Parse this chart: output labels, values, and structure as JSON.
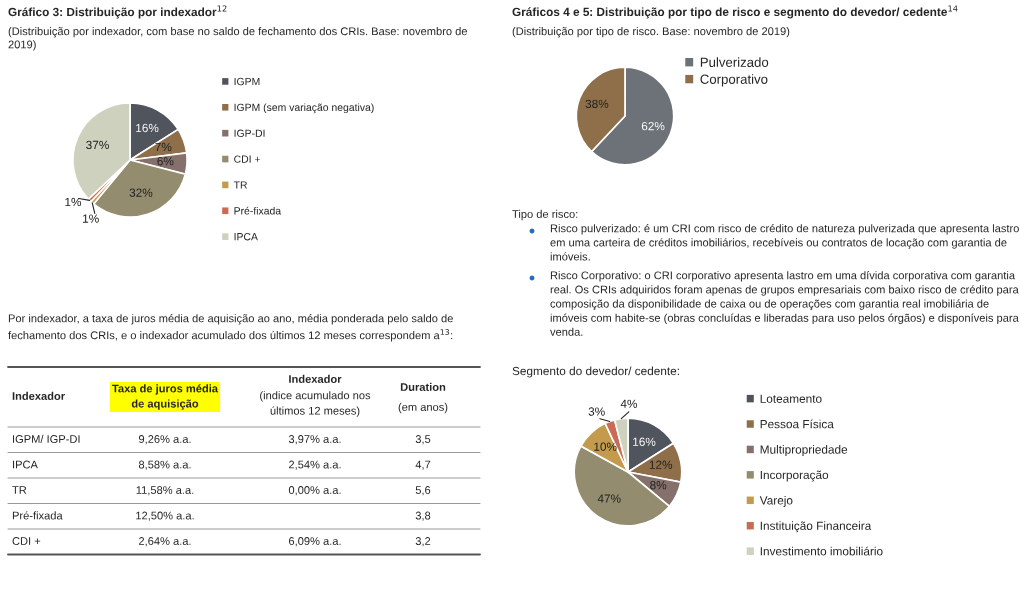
{
  "chart_data": [
    {
      "type": "pie",
      "title": "Gráfico 3: Distribuição por indexador$^{12}$",
      "subtitle": "(Distribuição por indexador, com base no saldo de fechamento dos CRIs. Base: novembro de\n2019)",
      "categories": [
        "IGPM",
        "IGPM (sem variação negativa)",
        "IGP-DI",
        "CDI +",
        "TR",
        "Pré-fixada",
        "IPCA"
      ],
      "values": [
        16,
        7,
        6,
        32,
        1,
        1,
        37
      ],
      "value_labels": [
        "16%",
        "7%",
        "6%",
        "32%",
        "1%",
        "1%",
        "37%"
      ],
      "colors": [
        "#50545c",
        "#8f6f4a",
        "#86706c",
        "#948c6e",
        "#c49a4c",
        "#c96b55",
        "#cdd1bd"
      ],
      "legend": "right"
    },
    {
      "type": "other",
      "annotations": [
        "Por indexador, a taxa de juros média de aquisição ao ano, média ponderada pelo saldo de\nfechamento dos CRIs, e o indexador acumulado dos últimos 12 meses correspondem a$^{13}$:",
        "Indexador",
        "Taxa de juros média\nde aquisição",
        "Indexador",
        "(indice acumulado nos\núltimos 12 meses)",
        "Duration",
        "(em anos)",
        "IGPM/ IGP-DI",
        "9,26% a.a.",
        "3,97% a.a.",
        "3,5",
        "IPCA",
        "8,58% a.a.",
        "2,54% a.a.",
        "4,7",
        "TR",
        "11,58% a.a.",
        "0,00% a.a.",
        "5,6",
        "Pré-fixada",
        "12,50% a.a.",
        null,
        "3,8",
        "CDI +",
        "2,64% a.a.",
        "6,09% a.a.",
        "3,2"
      ]
    },
    {
      "type": "pie",
      "title": "Gráficos 4 e 5: Distribuição por tipo de risco e segmento do devedor/ cedente$^{14}$",
      "subtitle": "(Distribuição por tipo de risco. Base: novembro de 2019)",
      "categories": [
        "Pulverizado",
        "Corporativo"
      ],
      "values": [
        62,
        38
      ],
      "value_labels": [
        "62%",
        "38%"
      ],
      "colors": [
        "#6d7278",
        "#8f6f4a"
      ],
      "legend": "top right"
    },
    {
      "type": "other",
      "annotations": [
        "Tipo de risco:",
        "Risco pulverizado: é um CRI com risco de crédito de natureza pulverizada que apresenta lastro em uma carteira de créditos imobiliários, recebíveis ou contratos de locação com garantia de imóveis.",
        "Risco Corporativo: o CRI corporativo apresenta lastro em uma dívida corporativa com garantia real. Os CRIs adquiridos foram apenas de grupos empresariais com baixo risco de crédito para composição da disponibilidade de caixa ou de operações com garantia real imobiliária de imóveis com habite-se (obras concluídas e liberadas para uso pelos órgãos) e disponíveis para venda."
      ]
    },
    {
      "type": "pie",
      "title": "Segmento do devedor/ cedente:",
      "categories": [
        "Loteamento",
        "Pessoa Física",
        "Multipropriedade",
        "Incorporação",
        "Varejo",
        "Instituição Financeira",
        "Investimento imobiliário"
      ],
      "values": [
        16,
        12,
        8,
        47,
        10,
        3,
        4
      ],
      "value_labels": [
        "16%",
        "12%",
        "8%",
        "47%",
        "10%",
        "3%",
        "4%"
      ],
      "colors": [
        "#50545c",
        "#8f6f4a",
        "#86706c",
        "#948c6e",
        "#c49a4c",
        "#c96b55",
        "#cdd1bd"
      ],
      "legend": "right"
    }
  ]
}
